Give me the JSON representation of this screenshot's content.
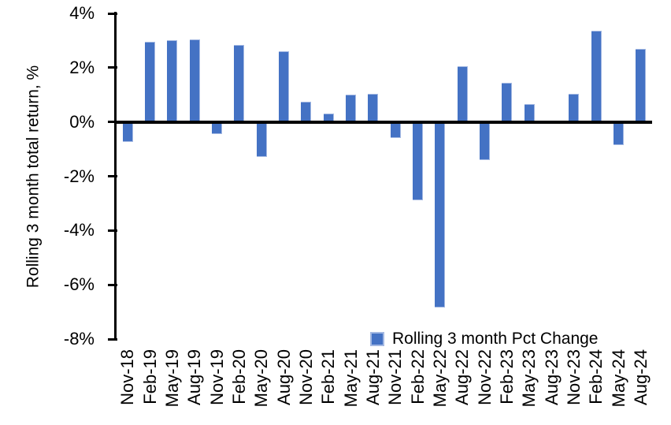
{
  "chart_data": {
    "type": "bar",
    "title": "",
    "xlabel": "",
    "ylabel": "Rolling 3 month total return, %",
    "ylim": [
      -8,
      4
    ],
    "grid": false,
    "yticks": {
      "values": [
        4,
        2,
        0,
        -2,
        -4,
        -6,
        -8
      ],
      "labels": [
        "4%",
        "2%",
        "0%",
        "-2%",
        "-4%",
        "-6%",
        "-8%"
      ]
    },
    "categories": [
      "Nov-18",
      "Feb-19",
      "May-19",
      "Aug-19",
      "Nov-19",
      "Feb-20",
      "May-20",
      "Aug-20",
      "Nov-20",
      "Feb-21",
      "May-21",
      "Aug-21",
      "Nov-21",
      "Feb-22",
      "May-22",
      "Aug-22",
      "Nov-22",
      "Feb-23",
      "May-23",
      "Aug-23",
      "Nov-23",
      "Feb-24",
      "May-24",
      "Aug-24"
    ],
    "values": [
      -0.75,
      2.95,
      3.0,
      3.05,
      -0.45,
      2.85,
      -1.3,
      2.6,
      0.75,
      0.3,
      1.0,
      1.05,
      -0.6,
      -2.9,
      -6.85,
      2.05,
      -1.4,
      1.45,
      0.65,
      0.0,
      1.05,
      3.35,
      -0.85,
      2.7
    ],
    "legend": {
      "label": "Rolling 3 month Pct Change",
      "position": "bottom-center-inside"
    },
    "colors": {
      "bar": "#4472C4",
      "bar_edge": "#a3b8e2",
      "axis": "#000000",
      "text": "#000000",
      "background": "#ffffff"
    }
  }
}
